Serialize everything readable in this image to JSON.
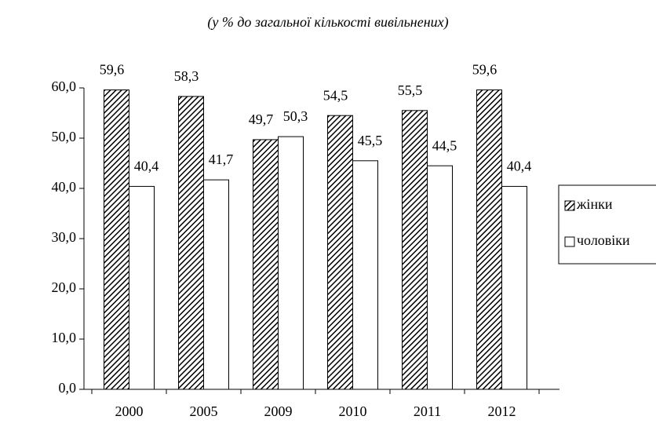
{
  "chart_data": {
    "type": "bar",
    "title": "(у % до загальної кількості вивільнених)",
    "categories": [
      "2000",
      "2005",
      "2009",
      "2010",
      "2011",
      "2012"
    ],
    "series": [
      {
        "name": "жінки",
        "color": "#000000",
        "pattern": "hatch",
        "values": [
          59.6,
          58.3,
          49.7,
          54.5,
          55.5,
          59.6
        ],
        "value_labels": [
          "59,6",
          "58,3",
          "49,7",
          "54,5",
          "55,5",
          "59,6"
        ]
      },
      {
        "name": "чоловіки",
        "color": "#ffffff",
        "values": [
          40.4,
          41.7,
          50.3,
          45.5,
          44.5,
          40.4
        ],
        "value_labels": [
          "40,4",
          "41,7",
          "50,3",
          "45,5",
          "44,5",
          "40,4"
        ]
      }
    ],
    "ylim": [
      0,
      60
    ],
    "yticks": [
      {
        "value": 0,
        "label": "0,0"
      },
      {
        "value": 10,
        "label": "10,0"
      },
      {
        "value": 20,
        "label": "20,0"
      },
      {
        "value": 30,
        "label": "30,0"
      },
      {
        "value": 40,
        "label": "40,0"
      },
      {
        "value": 50,
        "label": "50,0"
      },
      {
        "value": 60,
        "label": "60,0"
      }
    ],
    "legend": "right"
  }
}
